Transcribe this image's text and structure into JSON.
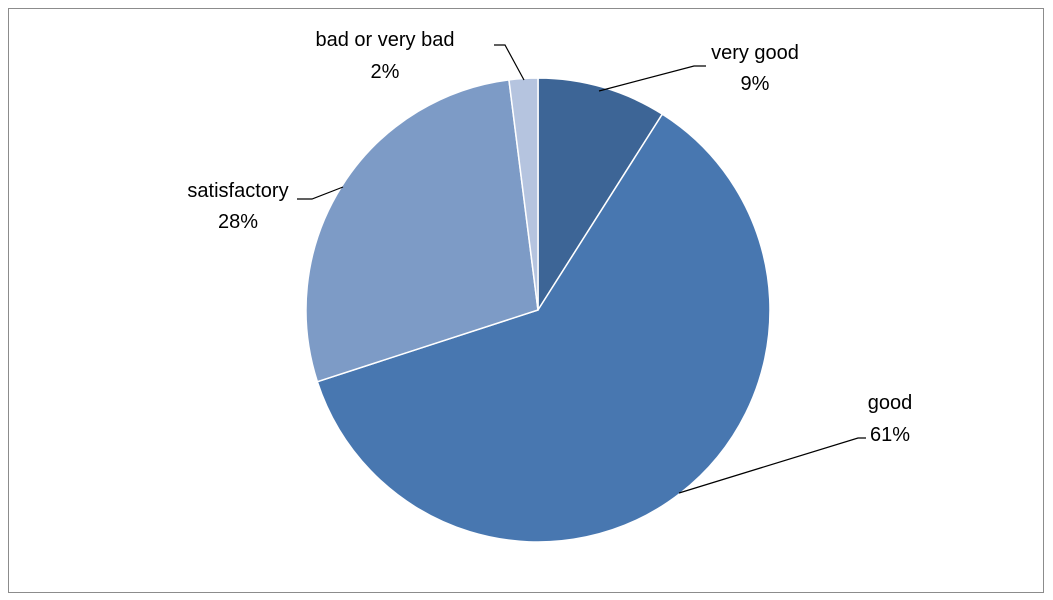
{
  "chart_data": {
    "type": "pie",
    "title": "",
    "slices": [
      {
        "label": "very good",
        "value": 9,
        "value_label": "9%",
        "color": "#3d6596"
      },
      {
        "label": "good",
        "value": 61,
        "value_label": "61%",
        "color": "#4877b0"
      },
      {
        "label": "satisfactory",
        "value": 28,
        "value_label": "28%",
        "color": "#7d9bc6"
      },
      {
        "label": "bad or very bad",
        "value": 2,
        "value_label": "2%",
        "color": "#b5c4df"
      }
    ],
    "start_angle": "12 o'clock",
    "direction": "clockwise",
    "legend": "none"
  }
}
